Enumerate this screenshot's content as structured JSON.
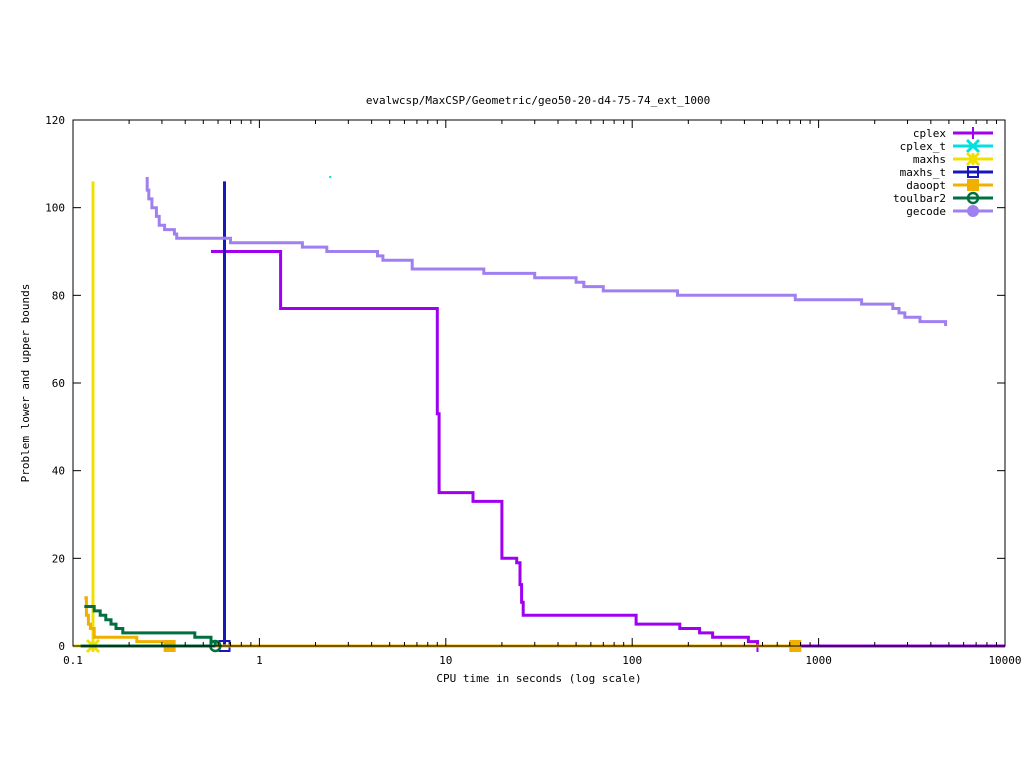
{
  "chart_data": {
    "type": "line",
    "title": "evalwcsp/MaxCSP/Geometric/geo50-20-d4-75-74_ext_1000",
    "xlabel": "CPU time in seconds (log scale)",
    "ylabel": "Problem lower and upper bounds",
    "xscale": "log",
    "xlim": [
      0.1,
      10000
    ],
    "ylim": [
      0,
      120
    ],
    "x_ticks": [
      0.1,
      1,
      10,
      100,
      1000,
      10000
    ],
    "x_tick_labels": [
      "0.1",
      "1",
      "10",
      "100",
      "1000",
      "10000"
    ],
    "y_ticks": [
      0,
      20,
      40,
      60,
      80,
      100,
      120
    ],
    "y_tick_labels": [
      "0",
      "20",
      "40",
      "60",
      "80",
      "100",
      "120"
    ],
    "grid": false,
    "legend_position": "top-right",
    "series": [
      {
        "name": "cplex",
        "color": "#a000f0",
        "marker": "plus",
        "upper": [
          [
            0.55,
            90
          ],
          [
            1.3,
            90
          ],
          [
            1.3,
            77
          ],
          [
            9,
            77
          ],
          [
            9,
            53
          ],
          [
            9.2,
            53
          ],
          [
            9.2,
            35
          ],
          [
            14,
            35
          ],
          [
            14,
            33
          ],
          [
            20,
            33
          ],
          [
            20,
            20
          ],
          [
            24,
            20
          ],
          [
            24,
            19
          ],
          [
            25,
            19
          ],
          [
            25,
            14
          ],
          [
            25.5,
            14
          ],
          [
            25.5,
            10
          ],
          [
            26,
            10
          ],
          [
            26,
            7
          ],
          [
            105,
            7
          ],
          [
            105,
            5
          ],
          [
            180,
            5
          ],
          [
            180,
            4
          ],
          [
            230,
            4
          ],
          [
            230,
            3
          ],
          [
            270,
            3
          ],
          [
            270,
            2
          ],
          [
            420,
            2
          ],
          [
            420,
            1
          ],
          [
            470,
            1
          ],
          [
            470,
            0
          ]
        ],
        "lower": [
          [
            0.1,
            0
          ],
          [
            10000,
            0
          ]
        ],
        "markers": [
          [
            470,
            0
          ]
        ]
      },
      {
        "name": "cplex_t",
        "color": "#00e0e0",
        "marker": "cross",
        "points": [
          [
            2.4,
            107
          ]
        ]
      },
      {
        "name": "maxhs",
        "color": "#f0e000",
        "marker": "star",
        "upper": [
          [
            0.128,
            0
          ],
          [
            0.128,
            106
          ]
        ],
        "lower": [
          [
            0.1,
            0
          ],
          [
            0.128,
            0
          ]
        ],
        "markers": [
          [
            0.128,
            0
          ]
        ]
      },
      {
        "name": "maxhs_t",
        "color": "#1818b8",
        "marker": "square-open",
        "upper": [
          [
            0.65,
            106
          ],
          [
            0.65,
            0
          ]
        ],
        "markers": [
          [
            0.65,
            0
          ]
        ]
      },
      {
        "name": "daoopt",
        "color": "#f0b000",
        "marker": "square-filled",
        "upper": [
          [
            0.115,
            11
          ],
          [
            0.118,
            11
          ],
          [
            0.118,
            7
          ],
          [
            0.121,
            7
          ],
          [
            0.121,
            5
          ],
          [
            0.124,
            5
          ],
          [
            0.124,
            4
          ],
          [
            0.13,
            4
          ],
          [
            0.13,
            2
          ],
          [
            0.22,
            2
          ],
          [
            0.22,
            1
          ],
          [
            0.33,
            1
          ],
          [
            0.33,
            0
          ]
        ],
        "lower": [
          [
            0.33,
            0
          ],
          [
            750,
            0
          ]
        ],
        "markers": [
          [
            0.33,
            0
          ],
          [
            750,
            0
          ]
        ]
      },
      {
        "name": "toulbar2",
        "color": "#007040",
        "marker": "circle-open",
        "upper": [
          [
            0.115,
            9
          ],
          [
            0.13,
            9
          ],
          [
            0.13,
            8
          ],
          [
            0.14,
            8
          ],
          [
            0.14,
            7
          ],
          [
            0.15,
            7
          ],
          [
            0.15,
            6
          ],
          [
            0.16,
            6
          ],
          [
            0.16,
            5
          ],
          [
            0.17,
            5
          ],
          [
            0.17,
            4
          ],
          [
            0.185,
            4
          ],
          [
            0.185,
            3
          ],
          [
            0.45,
            3
          ],
          [
            0.45,
            2
          ],
          [
            0.55,
            2
          ],
          [
            0.55,
            1
          ],
          [
            0.58,
            1
          ],
          [
            0.58,
            0
          ]
        ],
        "lower": [
          [
            0.11,
            0
          ],
          [
            0.58,
            0
          ]
        ],
        "markers": [
          [
            0.58,
            0
          ]
        ]
      },
      {
        "name": "gecode",
        "color": "#a080f0",
        "marker": "circle-filled",
        "upper": [
          [
            0.25,
            107
          ],
          [
            0.25,
            104
          ],
          [
            0.255,
            104
          ],
          [
            0.255,
            102
          ],
          [
            0.265,
            102
          ],
          [
            0.265,
            100
          ],
          [
            0.28,
            100
          ],
          [
            0.28,
            98
          ],
          [
            0.29,
            98
          ],
          [
            0.29,
            96
          ],
          [
            0.31,
            96
          ],
          [
            0.31,
            95
          ],
          [
            0.35,
            95
          ],
          [
            0.35,
            94
          ],
          [
            0.36,
            94
          ],
          [
            0.36,
            93
          ],
          [
            0.7,
            93
          ],
          [
            0.7,
            92
          ],
          [
            1.7,
            92
          ],
          [
            1.7,
            91
          ],
          [
            2.3,
            91
          ],
          [
            2.3,
            90
          ],
          [
            4.3,
            90
          ],
          [
            4.3,
            89
          ],
          [
            4.6,
            89
          ],
          [
            4.6,
            88
          ],
          [
            6.6,
            88
          ],
          [
            6.6,
            86
          ],
          [
            16,
            86
          ],
          [
            16,
            85
          ],
          [
            30,
            85
          ],
          [
            30,
            84
          ],
          [
            50,
            84
          ],
          [
            50,
            83
          ],
          [
            55,
            83
          ],
          [
            55,
            82
          ],
          [
            70,
            82
          ],
          [
            70,
            81
          ],
          [
            175,
            81
          ],
          [
            175,
            80
          ],
          [
            750,
            80
          ],
          [
            750,
            79
          ],
          [
            1700,
            79
          ],
          [
            1700,
            78
          ],
          [
            2500,
            78
          ],
          [
            2500,
            77
          ],
          [
            2700,
            77
          ],
          [
            2700,
            76
          ],
          [
            2900,
            76
          ],
          [
            2900,
            75
          ],
          [
            3500,
            75
          ],
          [
            3500,
            74
          ],
          [
            4800,
            74
          ],
          [
            4800,
            73
          ]
        ]
      }
    ]
  }
}
